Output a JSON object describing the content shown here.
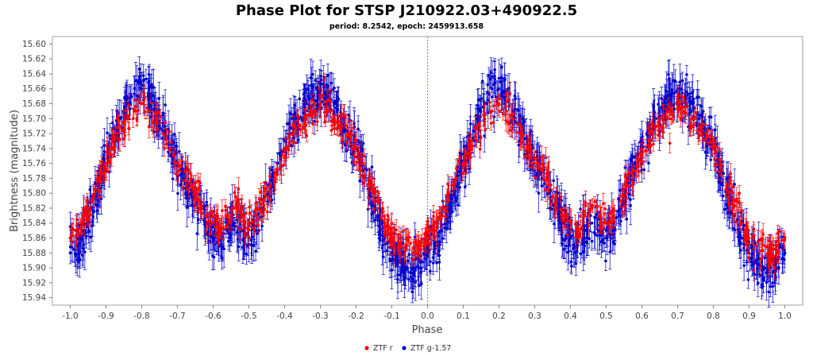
{
  "chart_data": {
    "type": "scatter",
    "title": "Phase Plot for STSP J210922.03+490922.5",
    "subtitle": "period: 8.2542, epoch: 2459913.658",
    "xlabel": "Phase",
    "ylabel": "Brightness (magnitude)",
    "xlim": [
      -1.05,
      1.05
    ],
    "ylim": [
      15.95,
      15.59
    ],
    "y_inverted": true,
    "grid": false,
    "x_ticks": [
      -1.0,
      -0.9,
      -0.8,
      -0.7,
      -0.6,
      -0.5,
      -0.4,
      -0.3,
      -0.2,
      -0.1,
      0.0,
      0.1,
      0.2,
      0.3,
      0.4,
      0.5,
      0.6,
      0.7,
      0.8,
      0.9,
      1.0
    ],
    "x_tick_labels": [
      "-1.0",
      "-0.9",
      "-0.8",
      "-0.7",
      "-0.6",
      "-0.5",
      "-0.4",
      "-0.3",
      "-0.2",
      "-0.1",
      "0.0",
      "0.1",
      "0.2",
      "0.3",
      "0.4",
      "0.5",
      "0.6",
      "0.7",
      "0.8",
      "0.9",
      "1.0"
    ],
    "y_ticks": [
      15.6,
      15.62,
      15.64,
      15.66,
      15.68,
      15.7,
      15.72,
      15.74,
      15.76,
      15.78,
      15.8,
      15.82,
      15.84,
      15.86,
      15.88,
      15.9,
      15.92,
      15.94
    ],
    "y_tick_labels": [
      "15.60",
      "15.62",
      "15.64",
      "15.66",
      "15.68",
      "15.70",
      "15.72",
      "15.74",
      "15.76",
      "15.78",
      "15.80",
      "15.82",
      "15.84",
      "15.86",
      "15.88",
      "15.90",
      "15.92",
      "15.94"
    ],
    "reference_line": {
      "x": 0.0,
      "style": "dotted"
    },
    "legend_position": "bottom-center",
    "series": [
      {
        "name": "ZTF r",
        "color": "#ff0000",
        "marker": "circle",
        "error_bars": true,
        "x": [
          -1.0,
          -0.98,
          -0.96,
          -0.94,
          -0.92,
          -0.9,
          -0.88,
          -0.86,
          -0.84,
          -0.82,
          -0.8,
          -0.78,
          -0.76,
          -0.74,
          -0.72,
          -0.7,
          -0.68,
          -0.66,
          -0.64,
          -0.62,
          -0.6,
          -0.58,
          -0.56,
          -0.54,
          -0.52,
          -0.5,
          -0.48,
          -0.46,
          -0.44,
          -0.42,
          -0.4,
          -0.38,
          -0.36,
          -0.34,
          -0.32,
          -0.3,
          -0.28,
          -0.26,
          -0.24,
          -0.22,
          -0.2,
          -0.18,
          -0.16,
          -0.14,
          -0.12,
          -0.1,
          -0.08,
          -0.06,
          -0.04,
          -0.02,
          0.0,
          0.02,
          0.04,
          0.06,
          0.08,
          0.1,
          0.12,
          0.14,
          0.16,
          0.18,
          0.2,
          0.22,
          0.24,
          0.26,
          0.28,
          0.3,
          0.32,
          0.34,
          0.36,
          0.38,
          0.4,
          0.42,
          0.44,
          0.46,
          0.48,
          0.5,
          0.52,
          0.54,
          0.56,
          0.58,
          0.6,
          0.62,
          0.64,
          0.66,
          0.68,
          0.7,
          0.72,
          0.74,
          0.76,
          0.78,
          0.8,
          0.82,
          0.84,
          0.86,
          0.88,
          0.9,
          0.92,
          0.94,
          0.96,
          0.98,
          1.0
        ],
        "y": [
          15.86,
          15.85,
          15.83,
          15.81,
          15.78,
          15.76,
          15.74,
          15.71,
          15.7,
          15.69,
          15.68,
          15.69,
          15.7,
          15.72,
          15.74,
          15.76,
          15.77,
          15.79,
          15.81,
          15.83,
          15.84,
          15.85,
          15.83,
          15.82,
          15.83,
          15.84,
          15.83,
          15.81,
          15.79,
          15.77,
          15.75,
          15.73,
          15.71,
          15.7,
          15.69,
          15.68,
          15.69,
          15.7,
          15.71,
          15.72,
          15.74,
          15.76,
          15.79,
          15.81,
          15.84,
          15.86,
          15.87,
          15.87,
          15.88,
          15.87,
          15.86,
          15.85,
          15.83,
          15.81,
          15.78,
          15.76,
          15.74,
          15.71,
          15.7,
          15.69,
          15.68,
          15.69,
          15.7,
          15.72,
          15.74,
          15.76,
          15.77,
          15.79,
          15.81,
          15.83,
          15.84,
          15.85,
          15.83,
          15.82,
          15.83,
          15.84,
          15.83,
          15.81,
          15.79,
          15.77,
          15.75,
          15.73,
          15.71,
          15.7,
          15.69,
          15.68,
          15.69,
          15.7,
          15.71,
          15.72,
          15.74,
          15.76,
          15.79,
          15.81,
          15.84,
          15.86,
          15.87,
          15.87,
          15.88,
          15.87,
          15.86
        ]
      },
      {
        "name": "ZTF g-1.57",
        "color": "#0000cc",
        "marker": "circle",
        "error_bars": true,
        "x": [
          -1.0,
          -0.98,
          -0.96,
          -0.94,
          -0.92,
          -0.9,
          -0.88,
          -0.86,
          -0.84,
          -0.82,
          -0.8,
          -0.78,
          -0.76,
          -0.74,
          -0.72,
          -0.7,
          -0.68,
          -0.66,
          -0.64,
          -0.62,
          -0.6,
          -0.58,
          -0.56,
          -0.54,
          -0.52,
          -0.5,
          -0.48,
          -0.46,
          -0.44,
          -0.42,
          -0.4,
          -0.38,
          -0.36,
          -0.34,
          -0.32,
          -0.3,
          -0.28,
          -0.26,
          -0.24,
          -0.22,
          -0.2,
          -0.18,
          -0.16,
          -0.14,
          -0.12,
          -0.1,
          -0.08,
          -0.06,
          -0.04,
          -0.02,
          0.0,
          0.02,
          0.04,
          0.06,
          0.08,
          0.1,
          0.12,
          0.14,
          0.16,
          0.18,
          0.2,
          0.22,
          0.24,
          0.26,
          0.28,
          0.3,
          0.32,
          0.34,
          0.36,
          0.38,
          0.4,
          0.42,
          0.44,
          0.46,
          0.48,
          0.5,
          0.52,
          0.54,
          0.56,
          0.58,
          0.6,
          0.62,
          0.64,
          0.66,
          0.68,
          0.7,
          0.72,
          0.74,
          0.76,
          0.78,
          0.8,
          0.82,
          0.84,
          0.86,
          0.88,
          0.9,
          0.92,
          0.94,
          0.96,
          0.98,
          1.0
        ],
        "y": [
          15.88,
          15.87,
          15.85,
          15.82,
          15.79,
          15.76,
          15.73,
          15.7,
          15.68,
          15.66,
          15.66,
          15.67,
          15.69,
          15.71,
          15.74,
          15.76,
          15.78,
          15.8,
          15.82,
          15.84,
          15.86,
          15.87,
          15.85,
          15.84,
          15.85,
          15.86,
          15.85,
          15.82,
          15.79,
          15.77,
          15.74,
          15.72,
          15.7,
          15.68,
          15.67,
          15.66,
          15.67,
          15.68,
          15.7,
          15.72,
          15.74,
          15.77,
          15.8,
          15.83,
          15.86,
          15.88,
          15.89,
          15.9,
          15.9,
          15.89,
          15.88,
          15.87,
          15.85,
          15.82,
          15.79,
          15.76,
          15.73,
          15.7,
          15.68,
          15.66,
          15.66,
          15.67,
          15.69,
          15.71,
          15.74,
          15.76,
          15.78,
          15.8,
          15.82,
          15.84,
          15.86,
          15.87,
          15.85,
          15.84,
          15.85,
          15.86,
          15.85,
          15.82,
          15.79,
          15.77,
          15.74,
          15.72,
          15.7,
          15.68,
          15.67,
          15.66,
          15.67,
          15.68,
          15.7,
          15.72,
          15.74,
          15.77,
          15.8,
          15.83,
          15.86,
          15.88,
          15.89,
          15.9,
          15.9,
          15.89,
          15.88
        ]
      }
    ]
  }
}
